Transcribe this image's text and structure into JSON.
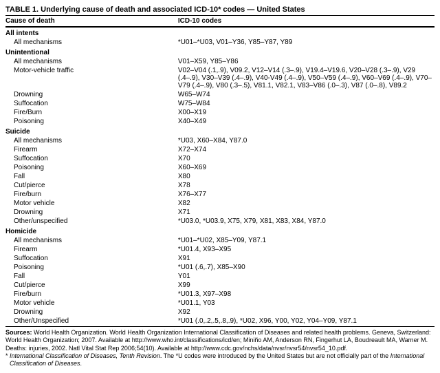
{
  "table_title": "TABLE 1. Underlying cause of death and associated ICD-10* codes — United States",
  "headers": {
    "cause": "Cause of death",
    "codes": "ICD-10 codes"
  },
  "sections": [
    {
      "label": "All intents",
      "rows": [
        {
          "cause": "All mechanisms",
          "codes": "*U01–*U03, V01–Y36, Y85–Y87, Y89"
        }
      ]
    },
    {
      "label": "Unintentional",
      "rows": [
        {
          "cause": "All mechanisms",
          "codes": "V01–X59, Y85–Y86"
        },
        {
          "cause": "Motor-vehicle traffic",
          "codes": "V02–V04 (.1,.9), V09.2, V12–V14 (.3–.9), V19.4–V19.6, V20–V28 (.3–.9), V29 (.4–.9), V30–V39 (.4–.9), V40-V49 (.4–.9), V50–V59 (.4–.9), V60–V69 (.4–.9), V70–V79 (.4–.9), V80 (.3–.5), V81.1, V82.1, V83–V86 (.0–.3), V87 (.0–.8), V89.2"
        },
        {
          "cause": "Drowning",
          "codes": "W65–W74"
        },
        {
          "cause": "Suffocation",
          "codes": "W75–W84"
        },
        {
          "cause": "Fire/Burn",
          "codes": "X00–X19"
        },
        {
          "cause": "Poisoning",
          "codes": "X40–X49"
        }
      ]
    },
    {
      "label": "Suicide",
      "rows": [
        {
          "cause": "All mechanisms",
          "codes": "*U03, X60–X84, Y87.0"
        },
        {
          "cause": "Firearm",
          "codes": "X72–X74"
        },
        {
          "cause": "Suffocation",
          "codes": "X70"
        },
        {
          "cause": "Poisoning",
          "codes": "X60–X69"
        },
        {
          "cause": "Fall",
          "codes": "X80"
        },
        {
          "cause": "Cut/pierce",
          "codes": "X78"
        },
        {
          "cause": "Fire/burn",
          "codes": "X76–X77"
        },
        {
          "cause": "Motor vehicle",
          "codes": "X82"
        },
        {
          "cause": "Drowning",
          "codes": "X71"
        },
        {
          "cause": "Other/unspecified",
          "codes": "*U03.0, *U03.9, X75, X79, X81, X83, X84, Y87.0"
        }
      ]
    },
    {
      "label": "Homicide",
      "rows": [
        {
          "cause": "All mechanisms",
          "codes": "*U01–*U02, X85–Y09, Y87.1"
        },
        {
          "cause": "Firearm",
          "codes": "*U01.4, X93–X95"
        },
        {
          "cause": "Suffocation",
          "codes": "X91"
        },
        {
          "cause": "Poisoning",
          "codes": "*U01 (.6,.7), X85–X90"
        },
        {
          "cause": "Fall",
          "codes": "Y01"
        },
        {
          "cause": "Cut/pierce",
          "codes": "X99"
        },
        {
          "cause": "Fire/burn",
          "codes": "*U01.3, X97–X98"
        },
        {
          "cause": "Motor vehicle",
          "codes": "*U01.1, Y03"
        },
        {
          "cause": "Drowning",
          "codes": "X92"
        },
        {
          "cause": "Other/Unspecified",
          "codes": "*U01 (.0,.2,.5,.8,.9), *U02, X96, Y00, Y02, Y04–Y09, Y87.1"
        }
      ]
    }
  ],
  "sources_label": "Sources:",
  "sources_text": " World Health Organization. World Health Organization International Classification of Diseases and related health problems. Geneva, Switzerland: World Health Organization; 2007. Available at http://www.who.int/classifications/icd/en; Miniño AM, Anderson RN, Fingerhut LA, Boudreault MA, Warner M. Deaths: injuries, 2002. Natl Vital Stat Rep 2006;54(10). Available at http://www.cdc.gov/nchs/data/nvsr/nvsr54/nvsr54_10.pdf.",
  "footnote_prefix": "* ",
  "footnote_italic1": "International Classification of Diseases, Tenth Revision",
  "footnote_mid": ". The *U codes were introduced by the United States but are not officially part of the ",
  "footnote_italic2": "International Classification of Diseases",
  "footnote_end": "."
}
